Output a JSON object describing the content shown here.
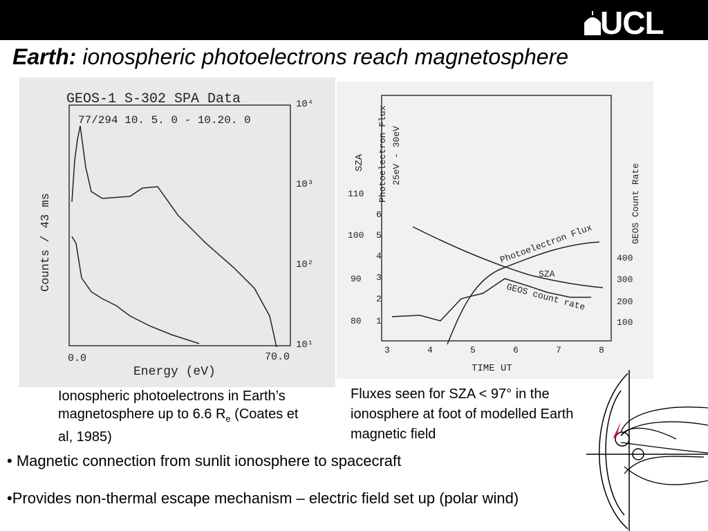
{
  "header": {
    "logo": "UCL"
  },
  "title": {
    "bold": "Earth:",
    "rest": " ionospheric photoelectrons reach magnetosphere"
  },
  "figure_left": {
    "title": "GEOS-1 S-302 SPA Data",
    "subtitle": "77/294 10. 5. 0 - 10.20. 0",
    "y_label": "Counts / 43 ms",
    "x_label": "Energy (eV)",
    "x_ticks": [
      "0.0",
      "70.0"
    ],
    "y_ticks": [
      "10⁴",
      "10³",
      "10²",
      "10¹"
    ]
  },
  "figure_right": {
    "x_label": "TIME UT",
    "x_ticks": [
      "3",
      "4",
      "5",
      "6",
      "7",
      "8"
    ],
    "sza_label": "SZA",
    "sza_ticks": [
      "80",
      "90",
      "100",
      "110"
    ],
    "flux_label": "Photoelectron Flux",
    "flux_range": "25eV - 30eV",
    "flux_ticks": [
      "1",
      "2",
      "3",
      "4",
      "5",
      "6"
    ],
    "geos_label": "GEOS Count Rate",
    "geos_ticks": [
      "100",
      "200",
      "300",
      "400"
    ],
    "curve_labels": [
      "Photoelectron Flux",
      "SZA",
      "GEOS count rate"
    ]
  },
  "captions": {
    "left": {
      "text": "Ionospheric photoelectrons in Earth’s magnetosphere  up to 6.6 R",
      "subscript": "e",
      "after": " (Coates et al, 1985)"
    },
    "right": "Fluxes seen for SZA < 97° in the ionosphere at foot of modelled Earth magnetic field"
  },
  "bullets": [
    "• Magnetic connection from sunlit ionosphere to spacecraft",
    "•Provides non-thermal escape mechanism – electric field  set up (polar wind)"
  ]
}
